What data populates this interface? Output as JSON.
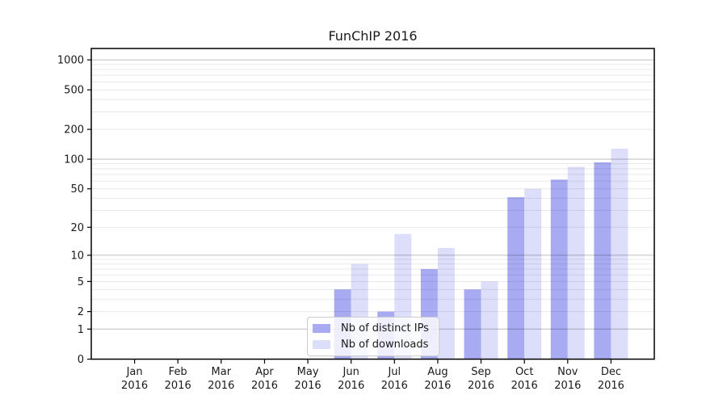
{
  "chart_data": {
    "type": "bar",
    "title": "FunChIP 2016",
    "categories": [
      "Jan",
      "Feb",
      "Mar",
      "Apr",
      "May",
      "Jun",
      "Jul",
      "Aug",
      "Sep",
      "Oct",
      "Nov",
      "Dec"
    ],
    "year_label": "2016",
    "series": [
      {
        "name": "Nb of distinct IPs",
        "color": "#a8abf2",
        "values": [
          0,
          0,
          0,
          0,
          0,
          4,
          2,
          7,
          4,
          41,
          62,
          93
        ]
      },
      {
        "name": "Nb of downloads",
        "color": "#dddffa",
        "values": [
          0,
          0,
          0,
          0,
          0,
          8,
          17,
          12,
          5,
          50,
          84,
          128
        ]
      }
    ],
    "y_axis": {
      "scale": "log1p",
      "tick_values": [
        0,
        1,
        2,
        5,
        10,
        20,
        50,
        100,
        200,
        500,
        1000
      ],
      "tick_labels": [
        "0",
        "1",
        "2",
        "5",
        "10",
        "20",
        "50",
        "100",
        "200",
        "500",
        "1000"
      ],
      "ylim": [
        0,
        1300
      ]
    },
    "grid": {
      "horizontal": true,
      "minor_log_decades": true,
      "major_decades": [
        1,
        10,
        100,
        1000
      ]
    },
    "legend_position": "lower center",
    "colors": {
      "bar_distinct_ips": "#a8abf2",
      "bar_downloads": "#dddffa",
      "text": "#1a1a1a"
    }
  }
}
